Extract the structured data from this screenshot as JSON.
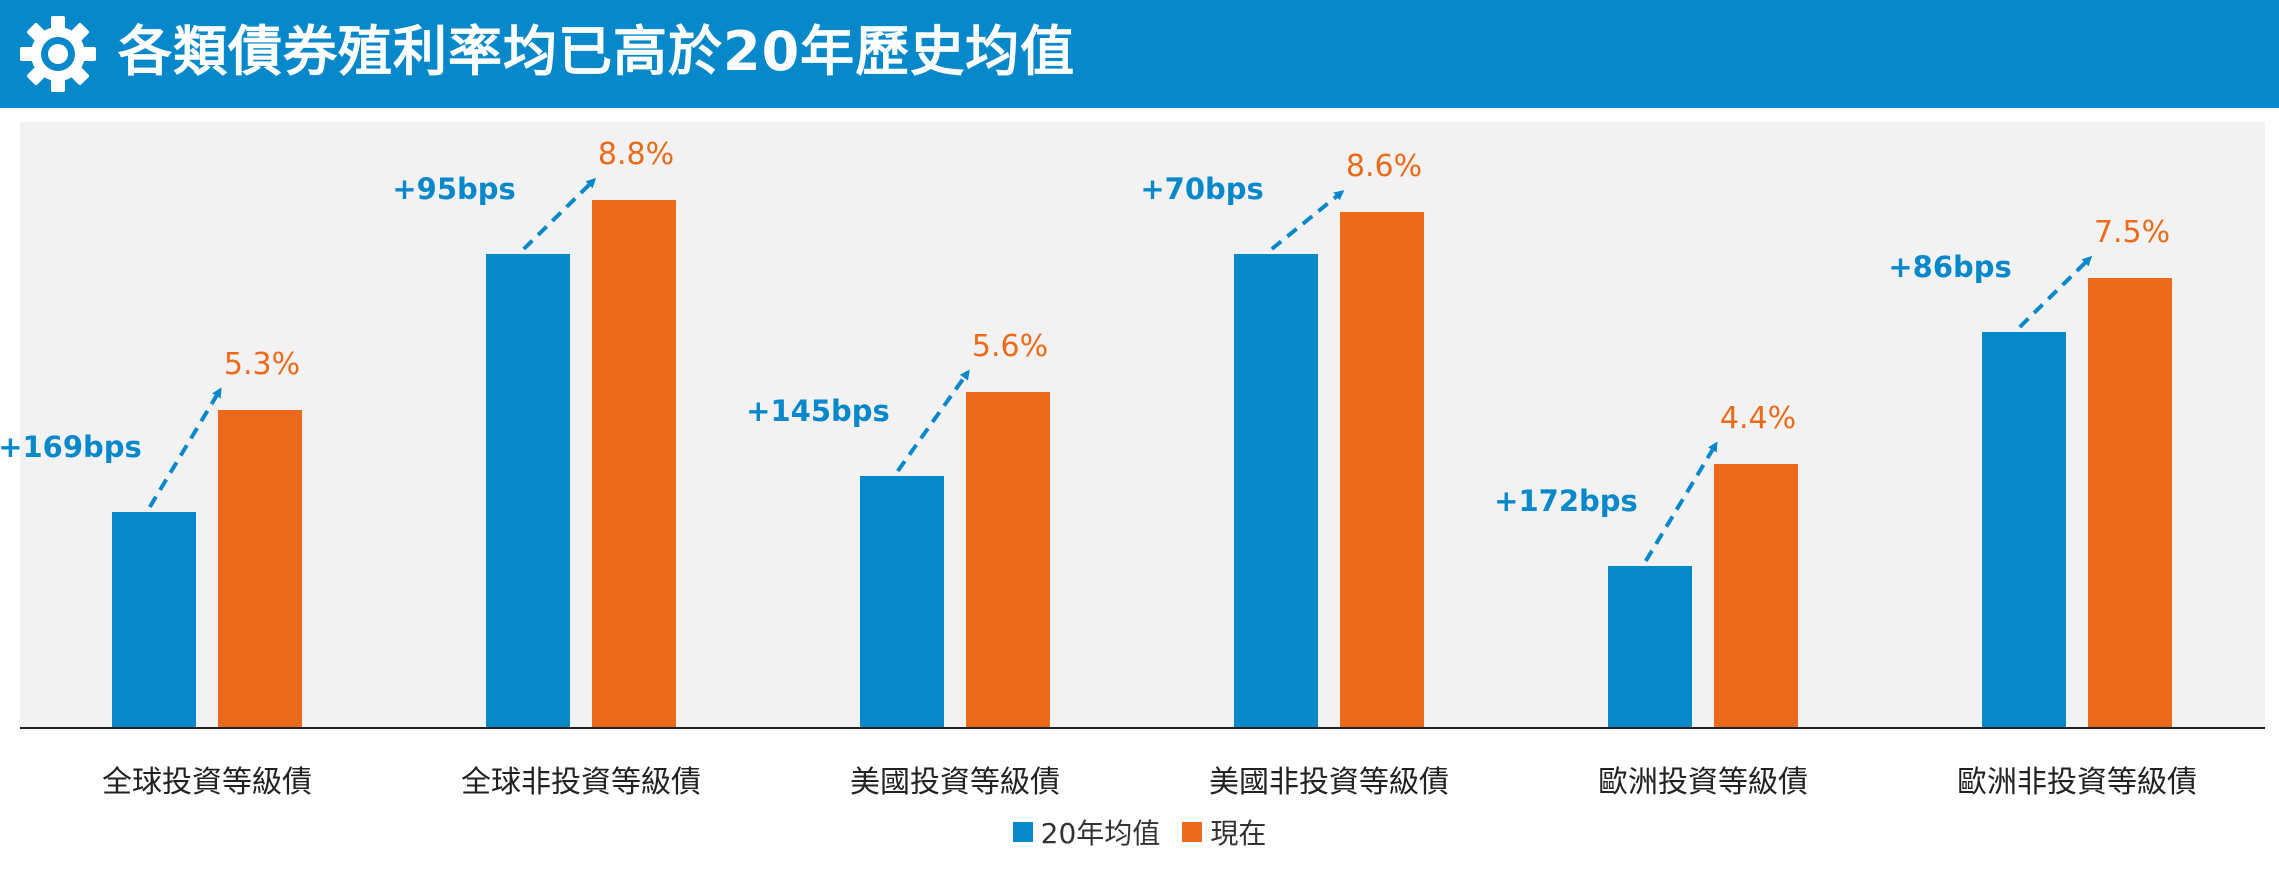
{
  "header": {
    "title": "各類債券殖利率均已高於20年歷史均值",
    "icon": "gear-icon"
  },
  "colors": {
    "header_bg": "#0788cb",
    "avg": "#0788cb",
    "now": "#ec6b1b",
    "plot_bg": "#f2f2f2"
  },
  "chart_data": {
    "type": "bar",
    "title": "各類債券殖利率均已高於20年歷史均值",
    "xlabel": "",
    "ylabel": "",
    "ylim": [
      0,
      9.5
    ],
    "grid": false,
    "legend_position": "bottom-center",
    "categories": [
      "全球投資等級債",
      "全球非投資等級債",
      "美國投資等級債",
      "美國非投資等級債",
      "歐洲投資等級債",
      "歐洲非投資等級債"
    ],
    "series": [
      {
        "name": "20年均值",
        "values": [
          3.6,
          7.9,
          4.2,
          7.9,
          2.7,
          6.6
        ]
      },
      {
        "name": "現在",
        "values": [
          5.3,
          8.8,
          5.6,
          8.6,
          4.4,
          7.5
        ]
      }
    ],
    "value_labels": [
      "5.3%",
      "8.8%",
      "5.6%",
      "8.6%",
      "4.4%",
      "7.5%"
    ],
    "spread_labels": [
      "+169bps",
      "+95bps",
      "+145bps",
      "+70bps",
      "+172bps",
      "+86bps"
    ]
  }
}
